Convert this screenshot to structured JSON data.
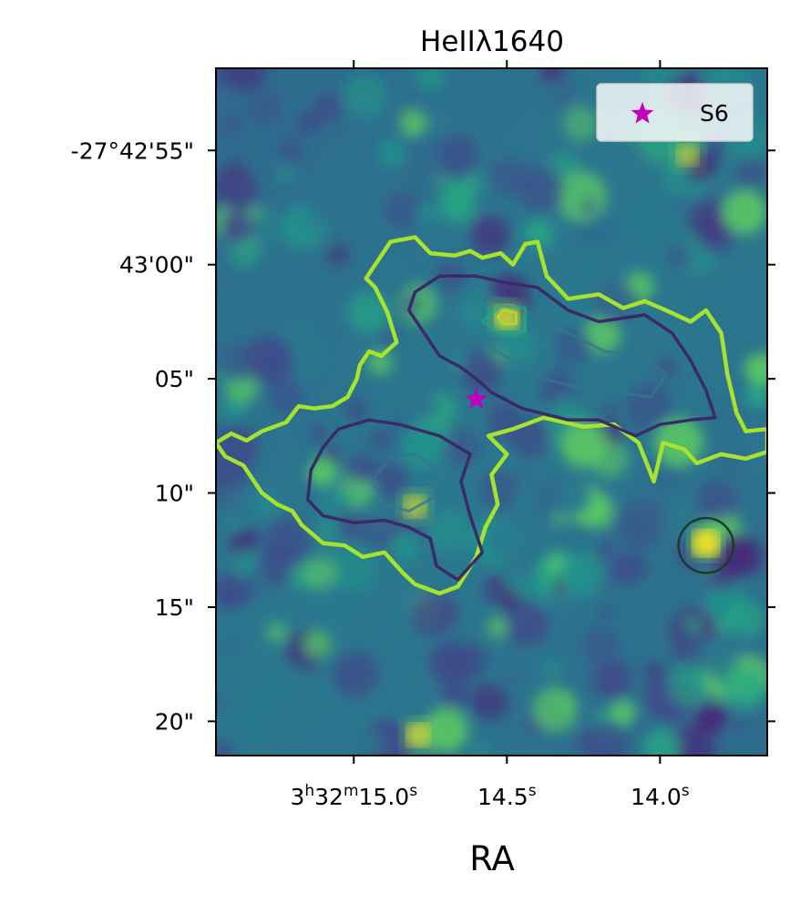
{
  "chart_data": {
    "type": "heatmap",
    "title": "HeIIλ1640",
    "xlabel": "RA",
    "ylabel": "",
    "colormap": "viridis",
    "x_ticks": [
      {
        "value": 15.0,
        "h": "3",
        "m": "32",
        "s": "15.0"
      },
      {
        "value": 14.5,
        "s": "14.5"
      },
      {
        "value": 14.0,
        "s": "14.0"
      }
    ],
    "xlim": [
      15.45,
      13.65
    ],
    "y_ticks": [
      {
        "value": -55,
        "label": "-27°42'55\""
      },
      {
        "value": -60,
        "label": "43'00\""
      },
      {
        "value": -65,
        "label": "05\""
      },
      {
        "value": -70,
        "label": "10\""
      },
      {
        "value": -75,
        "label": "15\""
      },
      {
        "value": -80,
        "label": "20\""
      }
    ],
    "ylim": [
      -51.4,
      -81.5
    ],
    "y_unit": "arcsec offset from -27°42'00\"",
    "legend": {
      "location": "upper right",
      "entries": [
        {
          "label": "S6",
          "marker": "star",
          "color": "#bf00bf"
        }
      ]
    },
    "markers": [
      {
        "name": "S6",
        "ra_s": 14.6,
        "dec_offset": -65.9,
        "shape": "star",
        "color": "#bf00bf"
      }
    ],
    "circles": [
      {
        "ra_s": 13.85,
        "dec_offset": -72.3,
        "radius_arcsec": 1.2,
        "color": "#1f3a2a"
      }
    ],
    "contour_levels": [
      {
        "level": 1,
        "color": "#a6e22e",
        "label": ""
      },
      {
        "level": 2,
        "color": "#3b2a68",
        "label": ""
      },
      {
        "level": 3,
        "color": "#35758c",
        "label": ""
      },
      {
        "level": 4,
        "color": "#22a884",
        "label": ""
      },
      {
        "level": 5,
        "color": "#bddf26",
        "label": ""
      }
    ],
    "bright_spots": [
      {
        "ra_s": 13.85,
        "dec_offset": -72.2,
        "intensity": 1.0
      },
      {
        "ra_s": 14.5,
        "dec_offset": -62.3,
        "intensity": 0.75
      },
      {
        "ra_s": 14.79,
        "dec_offset": -80.6,
        "intensity": 0.7
      },
      {
        "ra_s": 14.8,
        "dec_offset": -70.6,
        "intensity": 0.6
      },
      {
        "ra_s": 13.91,
        "dec_offset": -55.2,
        "intensity": 0.55
      }
    ]
  },
  "colors": {
    "viridis_dark": "#440154",
    "viridis_mid": "#21918c",
    "viridis_bright": "#fde725",
    "outer_contour": "#a6e22e",
    "star": "#bf00bf"
  }
}
